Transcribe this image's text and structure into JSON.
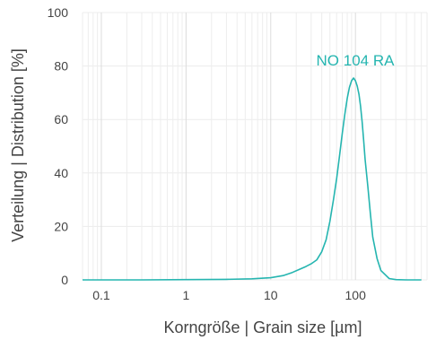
{
  "chart_data": {
    "type": "line",
    "title": "",
    "xlabel": "Korngröße  |  Grain size [µm]",
    "ylabel": "Verteilung  |  Distribution [%]",
    "x_scale": "log",
    "xlim": [
      0.06,
      700
    ],
    "ylim": [
      0,
      100
    ],
    "x_ticks": [
      {
        "value": 0.1,
        "label": "0.1"
      },
      {
        "value": 1,
        "label": "1"
      },
      {
        "value": 10,
        "label": "10"
      },
      {
        "value": 100,
        "label": "100"
      }
    ],
    "y_ticks": [
      {
        "value": 0,
        "label": "0"
      },
      {
        "value": 20,
        "label": "20"
      },
      {
        "value": 40,
        "label": "40"
      },
      {
        "value": 60,
        "label": "60"
      },
      {
        "value": 80,
        "label": "80"
      },
      {
        "value": 100,
        "label": "100"
      }
    ],
    "grid": true,
    "series": [
      {
        "name": "NO 104 RA",
        "color": "#25b5b0",
        "x": [
          0.06,
          0.1,
          0.3,
          1,
          3,
          6,
          10,
          14,
          18,
          22,
          26,
          30,
          35,
          40,
          45,
          50,
          55,
          60,
          65,
          70,
          75,
          80,
          85,
          90,
          95,
          100,
          105,
          110,
          115,
          120,
          125,
          130,
          140,
          150,
          160,
          180,
          200,
          250,
          300,
          400,
          600
        ],
        "y": [
          0,
          0,
          0,
          0.1,
          0.2,
          0.4,
          0.8,
          1.6,
          2.8,
          4.0,
          5.0,
          6.0,
          7.5,
          10.5,
          15.0,
          22.0,
          30.0,
          38.0,
          46.5,
          55.0,
          62.0,
          68.0,
          72.0,
          74.5,
          75.5,
          74.5,
          72.5,
          69.5,
          65.0,
          59.0,
          52.0,
          45.0,
          35.0,
          25.0,
          16.0,
          8.0,
          3.5,
          0.5,
          0.1,
          0,
          0
        ]
      }
    ]
  }
}
